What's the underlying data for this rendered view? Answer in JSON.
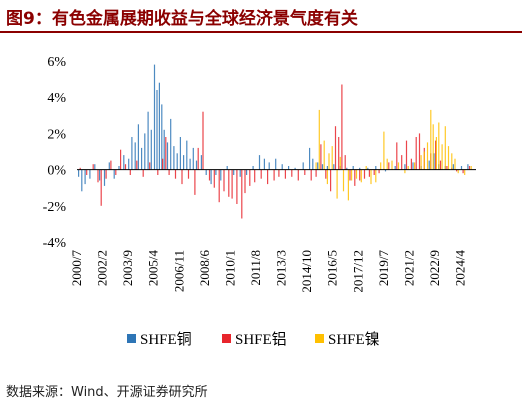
{
  "title": "图9：有色金属展期收益与全球经济景气度有关",
  "source": "数据来源：Wind、开源证券研究所",
  "colors": {
    "title": "#8b0000",
    "copper": "#2e75b6",
    "aluminium": "#e8252c",
    "nickel": "#ffc000"
  },
  "chart_data": {
    "type": "bar",
    "ylim": [
      -4,
      6
    ],
    "y_ticks": [
      "6%",
      "4%",
      "2%",
      "0%",
      "-2%",
      "-4%"
    ],
    "y_tick_values": [
      6,
      4,
      2,
      0,
      -2,
      -4
    ],
    "x_ticks": [
      "2000/7",
      "2002/2",
      "2003/9",
      "2005/4",
      "2006/11",
      "2008/6",
      "2010/1",
      "2011/8",
      "2013/3",
      "2014/10",
      "2016/5",
      "2017/12",
      "2019/7",
      "2021/2",
      "2022/9",
      "2024/4"
    ],
    "x_tick_values": [
      2000.5,
      2002.08,
      2003.67,
      2005.25,
      2006.83,
      2008.42,
      2010.0,
      2011.58,
      2013.17,
      2014.75,
      2016.33,
      2017.92,
      2019.5,
      2021.08,
      2022.67,
      2024.25
    ],
    "xlim": [
      2000.5,
      2025.2
    ],
    "grid": false,
    "legend_position": "bottom",
    "series": [
      {
        "name": "SHFE铜",
        "color": "#2e75b6",
        "points": [
          [
            2000.6,
            -0.4
          ],
          [
            2000.8,
            -1.2
          ],
          [
            2001.0,
            -0.8
          ],
          [
            2001.3,
            -0.5
          ],
          [
            2001.6,
            0.3
          ],
          [
            2001.9,
            -0.6
          ],
          [
            2002.2,
            -0.9
          ],
          [
            2002.5,
            0.4
          ],
          [
            2002.8,
            -0.5
          ],
          [
            2003.1,
            0.2
          ],
          [
            2003.4,
            0.8
          ],
          [
            2003.7,
            0.6
          ],
          [
            2003.9,
            1.8
          ],
          [
            2004.1,
            1.5
          ],
          [
            2004.3,
            2.5
          ],
          [
            2004.5,
            1.2
          ],
          [
            2004.7,
            2.0
          ],
          [
            2004.9,
            3.2
          ],
          [
            2005.1,
            2.2
          ],
          [
            2005.3,
            5.8
          ],
          [
            2005.45,
            4.4
          ],
          [
            2005.6,
            4.8
          ],
          [
            2005.75,
            3.6
          ],
          [
            2005.9,
            2.2
          ],
          [
            2006.1,
            1.5
          ],
          [
            2006.3,
            2.8
          ],
          [
            2006.5,
            1.3
          ],
          [
            2006.7,
            0.9
          ],
          [
            2006.9,
            1.8
          ],
          [
            2007.1,
            0.8
          ],
          [
            2007.3,
            1.6
          ],
          [
            2007.5,
            0.6
          ],
          [
            2007.7,
            1.2
          ],
          [
            2007.9,
            0.5
          ],
          [
            2008.2,
            0.8
          ],
          [
            2008.5,
            -0.3
          ],
          [
            2008.8,
            -0.8
          ],
          [
            2009.1,
            -0.3
          ],
          [
            2009.4,
            -0.6
          ],
          [
            2009.8,
            0.2
          ],
          [
            2010.2,
            -0.3
          ],
          [
            2010.6,
            -0.4
          ],
          [
            2011.0,
            -0.3
          ],
          [
            2011.4,
            0.2
          ],
          [
            2011.8,
            0.8
          ],
          [
            2012.1,
            0.6
          ],
          [
            2012.4,
            0.4
          ],
          [
            2012.8,
            0.6
          ],
          [
            2013.2,
            0.3
          ],
          [
            2013.6,
            0.2
          ],
          [
            2014.0,
            0.1
          ],
          [
            2014.5,
            0.4
          ],
          [
            2014.9,
            1.2
          ],
          [
            2015.1,
            0.6
          ],
          [
            2015.4,
            0.4
          ],
          [
            2015.7,
            0.3
          ],
          [
            2016.0,
            0.2
          ],
          [
            2016.4,
            0.3
          ],
          [
            2016.8,
            0.2
          ],
          [
            2017.2,
            0.1
          ],
          [
            2017.6,
            0.2
          ],
          [
            2018.0,
            0.1
          ],
          [
            2018.5,
            0.1
          ],
          [
            2019.0,
            0.2
          ],
          [
            2019.6,
            -0.1
          ],
          [
            2020.2,
            0.2
          ],
          [
            2020.8,
            0.3
          ],
          [
            2021.3,
            0.4
          ],
          [
            2021.8,
            0.2
          ],
          [
            2022.3,
            0.5
          ],
          [
            2022.6,
            0.9
          ],
          [
            2022.9,
            0.3
          ],
          [
            2023.3,
            0.2
          ],
          [
            2023.8,
            0.3
          ],
          [
            2024.3,
            0.2
          ],
          [
            2024.7,
            0.3
          ]
        ]
      },
      {
        "name": "SHFE铝",
        "color": "#e8252c",
        "points": [
          [
            2000.7,
            0.1
          ],
          [
            2001.1,
            -0.3
          ],
          [
            2001.5,
            0.3
          ],
          [
            2001.8,
            -0.7
          ],
          [
            2002.0,
            -2.0
          ],
          [
            2002.3,
            -0.5
          ],
          [
            2002.6,
            0.5
          ],
          [
            2002.9,
            -0.3
          ],
          [
            2003.2,
            1.1
          ],
          [
            2003.5,
            0.3
          ],
          [
            2003.8,
            -0.3
          ],
          [
            2004.2,
            0.5
          ],
          [
            2004.6,
            -0.4
          ],
          [
            2005.0,
            0.4
          ],
          [
            2005.5,
            -0.3
          ],
          [
            2005.8,
            0.6
          ],
          [
            2006.0,
            1.8
          ],
          [
            2006.2,
            -0.3
          ],
          [
            2006.6,
            -0.5
          ],
          [
            2007.0,
            -0.8
          ],
          [
            2007.4,
            -0.5
          ],
          [
            2007.8,
            -1.4
          ],
          [
            2008.0,
            1.2
          ],
          [
            2008.3,
            3.2
          ],
          [
            2008.7,
            -0.6
          ],
          [
            2009.0,
            -1.0
          ],
          [
            2009.3,
            -1.8
          ],
          [
            2009.6,
            -1.2
          ],
          [
            2009.9,
            -1.5
          ],
          [
            2010.1,
            -1.6
          ],
          [
            2010.4,
            -1.9
          ],
          [
            2010.7,
            -2.7
          ],
          [
            2010.9,
            -1.3
          ],
          [
            2011.2,
            -0.9
          ],
          [
            2011.5,
            -0.7
          ],
          [
            2011.9,
            -0.5
          ],
          [
            2012.3,
            -0.8
          ],
          [
            2012.7,
            -0.6
          ],
          [
            2013.0,
            -0.4
          ],
          [
            2013.4,
            -0.5
          ],
          [
            2013.8,
            -0.4
          ],
          [
            2014.2,
            -0.6
          ],
          [
            2014.6,
            -0.3
          ],
          [
            2015.0,
            -0.6
          ],
          [
            2015.3,
            -0.4
          ],
          [
            2015.6,
            1.4
          ],
          [
            2015.9,
            -0.5
          ],
          [
            2016.2,
            -1.2
          ],
          [
            2016.5,
            2.4
          ],
          [
            2016.7,
            1.8
          ],
          [
            2016.9,
            4.7
          ],
          [
            2017.1,
            0.8
          ],
          [
            2017.4,
            -0.6
          ],
          [
            2017.7,
            -0.9
          ],
          [
            2018.0,
            -0.6
          ],
          [
            2018.3,
            -0.5
          ],
          [
            2018.6,
            -0.4
          ],
          [
            2018.9,
            -0.3
          ],
          [
            2019.2,
            -0.2
          ],
          [
            2019.8,
            0.4
          ],
          [
            2020.3,
            1.5
          ],
          [
            2020.6,
            0.8
          ],
          [
            2020.9,
            1.6
          ],
          [
            2021.2,
            0.6
          ],
          [
            2021.5,
            1.8
          ],
          [
            2021.7,
            2.0
          ],
          [
            2022.0,
            1.2
          ],
          [
            2022.4,
            0.9
          ],
          [
            2022.7,
            1.6
          ],
          [
            2023.0,
            0.5
          ],
          [
            2023.4,
            0.2
          ],
          [
            2023.7,
            0.1
          ],
          [
            2024.0,
            -0.1
          ],
          [
            2024.4,
            -0.2
          ],
          [
            2024.8,
            0.2
          ]
        ]
      },
      {
        "name": "SHFE镍",
        "color": "#ffc000",
        "points": [
          [
            2015.3,
            0.4
          ],
          [
            2015.5,
            3.3
          ],
          [
            2015.8,
            1.6
          ],
          [
            2016.0,
            -0.8
          ],
          [
            2016.1,
            0.9
          ],
          [
            2016.3,
            1.3
          ],
          [
            2016.6,
            -1.6
          ],
          [
            2016.8,
            0.7
          ],
          [
            2017.0,
            -1.2
          ],
          [
            2017.3,
            -1.7
          ],
          [
            2017.5,
            -0.6
          ],
          [
            2017.8,
            -0.5
          ],
          [
            2018.1,
            -0.7
          ],
          [
            2018.4,
            0.2
          ],
          [
            2018.7,
            -0.8
          ],
          [
            2019.0,
            -0.7
          ],
          [
            2019.3,
            0.4
          ],
          [
            2019.5,
            2.1
          ],
          [
            2019.7,
            0.6
          ],
          [
            2020.0,
            0.5
          ],
          [
            2020.4,
            0.4
          ],
          [
            2020.8,
            -0.2
          ],
          [
            2021.0,
            0.2
          ],
          [
            2021.4,
            0.4
          ],
          [
            2021.8,
            0.8
          ],
          [
            2022.0,
            1.0
          ],
          [
            2022.2,
            1.5
          ],
          [
            2022.4,
            3.3
          ],
          [
            2022.55,
            2.5
          ],
          [
            2022.75,
            1.8
          ],
          [
            2022.9,
            2.6
          ],
          [
            2023.1,
            1.4
          ],
          [
            2023.3,
            2.4
          ],
          [
            2023.5,
            1.3
          ],
          [
            2023.7,
            0.9
          ],
          [
            2023.9,
            0.6
          ],
          [
            2024.1,
            -0.2
          ],
          [
            2024.5,
            -0.3
          ],
          [
            2024.9,
            0.2
          ]
        ]
      }
    ]
  }
}
